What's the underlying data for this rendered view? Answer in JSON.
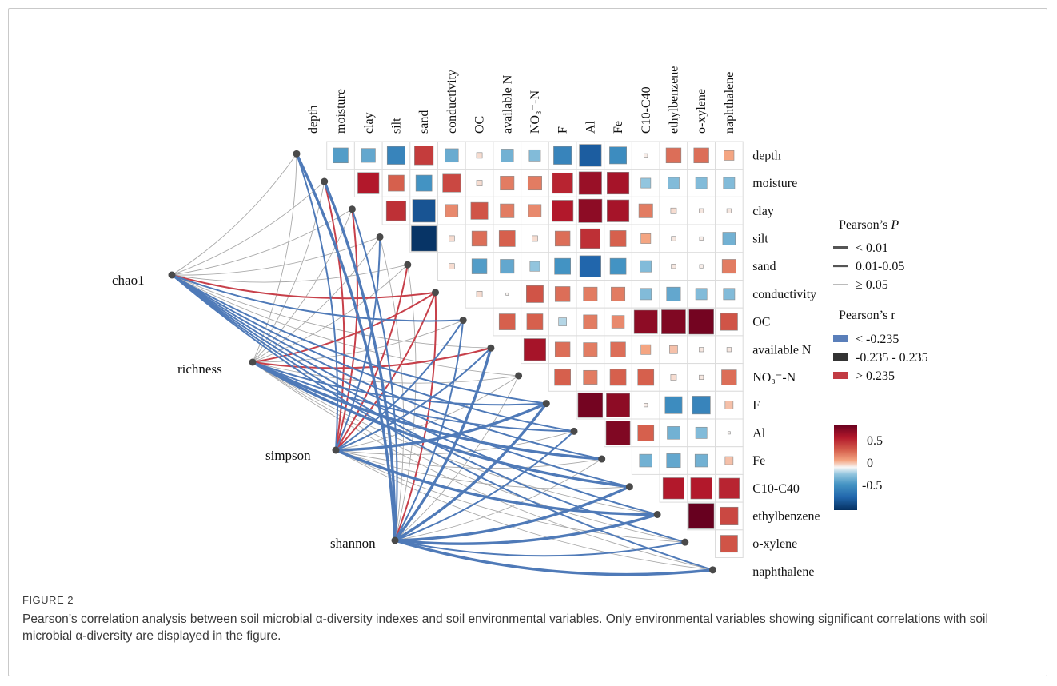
{
  "figure": {
    "label": "FIGURE 2",
    "caption": "Pearson’s correlation analysis between soil microbial α-diversity indexes and soil environmental variables. Only environmental variables showing significant correlations with soil microbial α-diversity are displayed in the figure."
  },
  "chart_data": {
    "type": "heatmap",
    "variables": [
      "depth",
      "moisture",
      "clay",
      "silt",
      "sand",
      "conductivity",
      "OC",
      "available N",
      "NO3--N",
      "F",
      "Al",
      "Fe",
      "C10-C40",
      "ethylbenzene",
      "o-xylene",
      "naphthalene"
    ],
    "variable_labels": [
      "depth",
      "moisture",
      "clay",
      "silt",
      "sand",
      "conductivity",
      "OC",
      "available N",
      "NO₃⁻-N",
      "F",
      "Al",
      "Fe",
      "C10-C40",
      "ethylbenzene",
      "o-xylene",
      "naphthalene"
    ],
    "correlation_matrix": [
      [
        -0.35,
        -0.3,
        -0.5,
        0.55,
        -0.28,
        0.05,
        -0.25,
        -0.2,
        -0.5,
        -0.75,
        -0.45,
        0.02,
        0.35,
        0.35,
        0.15
      ],
      [
        0.7,
        0.4,
        -0.4,
        0.5,
        0.05,
        0.3,
        0.3,
        0.65,
        0.8,
        0.75,
        -0.15,
        -0.2,
        -0.2,
        -0.2
      ],
      [
        0.6,
        -0.8,
        0.25,
        0.45,
        0.3,
        0.25,
        0.7,
        0.85,
        0.75,
        0.3,
        0.05,
        0.03,
        0.03
      ],
      [
        -0.98,
        0.05,
        0.35,
        0.4,
        0.05,
        0.35,
        0.6,
        0.4,
        0.15,
        0.03,
        0.02,
        -0.25
      ],
      [
        0.05,
        -0.35,
        -0.3,
        -0.15,
        -0.4,
        -0.7,
        -0.4,
        -0.2,
        0.03,
        0.02,
        0.3
      ],
      [
        0.05,
        0.01,
        0.45,
        0.35,
        0.3,
        0.3,
        -0.2,
        -0.3,
        -0.2,
        -0.2
      ],
      [
        0.4,
        0.4,
        -0.1,
        0.3,
        0.25,
        0.85,
        0.9,
        0.95,
        0.45
      ],
      [
        0.75,
        0.35,
        0.3,
        0.35,
        0.15,
        0.1,
        0.03,
        0.03
      ],
      [
        0.4,
        0.3,
        0.4,
        0.4,
        0.05,
        0.03,
        0.35
      ],
      [
        0.95,
        0.85,
        0.02,
        -0.45,
        -0.5,
        0.1
      ],
      [
        0.9,
        0.4,
        -0.25,
        -0.2,
        0.01
      ],
      [
        -0.25,
        -0.3,
        -0.25,
        0.1
      ],
      [
        0.7,
        0.7,
        0.65
      ],
      [
        1.0,
        0.5
      ],
      [
        0.45
      ]
    ],
    "diversity_indexes": [
      "chao1",
      "richness",
      "simpson",
      "shannon"
    ],
    "links": {
      "chao1": [
        "n",
        "n",
        "n",
        "n",
        "n",
        "r",
        "b",
        "n",
        "n",
        "b",
        "b",
        "b",
        "b",
        "b",
        "b",
        "b"
      ],
      "richness": [
        "n",
        "n",
        "n",
        "n",
        "n",
        "r",
        "n",
        "r",
        "n",
        "b",
        "b",
        "B",
        "B",
        "n",
        "n",
        "n"
      ],
      "simpson": [
        "b",
        "r",
        "r",
        "b",
        "r",
        "r",
        "b",
        "b",
        "n",
        "B",
        "n",
        "n",
        "n",
        "B",
        "n",
        "n"
      ],
      "shannon": [
        "B",
        "B",
        "b",
        "n",
        "n",
        "r",
        "b",
        "B",
        "n",
        "B",
        "b",
        "n",
        "B",
        "B",
        "b",
        "B"
      ]
    },
    "link_code_meaning": {
      "n": "|r| ≤ 0.235, P ≥ 0.05",
      "b": "r < -0.235, P 0.01-0.05",
      "B": "r < -0.235, P < 0.01",
      "r": "r > 0.235, P 0.01-0.05"
    },
    "color_scale": {
      "min": -1,
      "max": 1,
      "ticks": [
        "0.5",
        "0",
        "-0.5"
      ]
    },
    "colors": {
      "strong_negative": "#053061",
      "neutral": "#f7f7f7",
      "strong_positive": "#67001f",
      "link_negative": "#4f7ab8",
      "link_positive": "#c7404a",
      "link_neutral": "#a9a9a9"
    }
  },
  "legend": {
    "p_title": "Pearson’s",
    "p_title_symbol": "P",
    "p_items": [
      "< 0.01",
      "0.01-0.05",
      "≥ 0.05"
    ],
    "r_title": "Pearson’s r",
    "r_items": [
      "< -0.235",
      "-0.235 - 0.235",
      "> 0.235"
    ],
    "r_colors": [
      "#5a7fba",
      "#333333",
      "#c23b43"
    ]
  }
}
